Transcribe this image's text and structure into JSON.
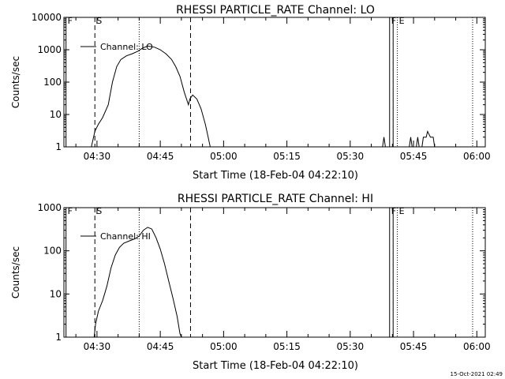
{
  "footer": {
    "timestamp": "15-Oct-2021 02:49"
  },
  "chart_data": [
    {
      "type": "line",
      "title": "RHESSI PARTICLE_RATE Channel: LO",
      "xlabel": "Start Time (18-Feb-04 04:22:10)",
      "ylabel": "Counts/sec",
      "yscale": "log",
      "xlim": [
        "04:22:10",
        "06:02:00"
      ],
      "ylim": [
        1,
        10000
      ],
      "x_ticks": [
        "04:30",
        "04:45",
        "05:00",
        "05:15",
        "05:30",
        "05:45",
        "06:00"
      ],
      "y_ticks": [
        "1",
        "10",
        "100",
        "1000",
        "10000"
      ],
      "legend": {
        "label": "Channel: LO",
        "position": "top-left"
      },
      "markers": [
        {
          "label": "F",
          "time": "04:22:40",
          "style": "solid"
        },
        {
          "label": "S",
          "time": "04:29:30",
          "style": "dashed"
        },
        {
          "label": "",
          "time": "04:40:00",
          "style": "dotted"
        },
        {
          "label": "",
          "time": "04:52:10",
          "style": "dashed"
        },
        {
          "label": "F",
          "time": "05:39:20",
          "style": "solid"
        },
        {
          "label": "",
          "time": "05:40:10",
          "style": "solid"
        },
        {
          "label": "E",
          "time": "05:41:10",
          "style": "dotted"
        },
        {
          "label": "",
          "time": "05:59:00",
          "style": "dotted"
        }
      ],
      "series": [
        {
          "color": "#000000",
          "segments": [
            [
              [
                "04:28:40",
                1
              ],
              [
                "04:29:30",
                3
              ],
              [
                "04:30:20",
                5
              ],
              [
                "04:31:20",
                8
              ],
              [
                "04:32:40",
                20
              ],
              [
                "04:33:40",
                100
              ],
              [
                "04:34:40",
                300
              ],
              [
                "04:35:40",
                500
              ],
              [
                "04:37:00",
                650
              ],
              [
                "04:38:20",
                750
              ],
              [
                "04:39:40",
                900
              ],
              [
                "04:40:40",
                1100
              ],
              [
                "04:42:00",
                1300
              ],
              [
                "04:43:40",
                1200
              ],
              [
                "04:45:00",
                1000
              ],
              [
                "04:46:20",
                750
              ],
              [
                "04:47:40",
                500
              ],
              [
                "04:48:40",
                300
              ],
              [
                "04:49:40",
                150
              ],
              [
                "04:50:40",
                50
              ],
              [
                "04:51:40",
                20
              ],
              [
                "04:52:00",
                30
              ],
              [
                "04:52:40",
                40
              ],
              [
                "04:53:40",
                30
              ],
              [
                "04:54:40",
                15
              ],
              [
                "04:55:40",
                5
              ],
              [
                "04:56:20",
                2
              ],
              [
                "04:56:50",
                1
              ]
            ],
            [
              [
                "05:37:40",
                1
              ],
              [
                "05:38:00",
                2
              ],
              [
                "05:38:20",
                1
              ]
            ],
            [
              [
                "05:44:00",
                1
              ],
              [
                "05:44:20",
                2
              ],
              [
                "05:44:40",
                1
              ]
            ],
            [
              [
                "05:45:40",
                1
              ],
              [
                "05:46:00",
                2
              ],
              [
                "05:46:20",
                1
              ]
            ],
            [
              [
                "05:47:00",
                1
              ],
              [
                "05:47:20",
                2
              ],
              [
                "05:48:00",
                2
              ],
              [
                "05:48:20",
                3
              ],
              [
                "05:49:00",
                2
              ],
              [
                "05:49:40",
                2
              ],
              [
                "05:50:00",
                1
              ]
            ]
          ]
        }
      ]
    },
    {
      "type": "line",
      "title": "RHESSI PARTICLE_RATE Channel: HI",
      "xlabel": "Start Time (18-Feb-04 04:22:10)",
      "ylabel": "Counts/sec",
      "yscale": "log",
      "xlim": [
        "04:22:10",
        "06:02:00"
      ],
      "ylim": [
        1,
        1000
      ],
      "x_ticks": [
        "04:30",
        "04:45",
        "05:00",
        "05:15",
        "05:30",
        "05:45",
        "06:00"
      ],
      "y_ticks": [
        "1",
        "10",
        "100",
        "1000"
      ],
      "legend": {
        "label": "Channel: HI",
        "position": "top-left"
      },
      "markers": [
        {
          "label": "F",
          "time": "04:22:40",
          "style": "solid"
        },
        {
          "label": "S",
          "time": "04:29:30",
          "style": "dashed"
        },
        {
          "label": "",
          "time": "04:40:00",
          "style": "dotted"
        },
        {
          "label": "",
          "time": "04:52:10",
          "style": "dashed"
        },
        {
          "label": "F",
          "time": "05:39:20",
          "style": "solid"
        },
        {
          "label": "",
          "time": "05:40:10",
          "style": "solid"
        },
        {
          "label": "E",
          "time": "05:41:10",
          "style": "dotted"
        },
        {
          "label": "",
          "time": "05:59:00",
          "style": "dotted"
        }
      ],
      "series": [
        {
          "color": "#000000",
          "segments": [
            [
              [
                "04:29:20",
                1
              ],
              [
                "04:29:40",
                2
              ],
              [
                "04:30:20",
                4
              ],
              [
                "04:31:20",
                7
              ],
              [
                "04:32:20",
                15
              ],
              [
                "04:33:20",
                40
              ],
              [
                "04:34:20",
                80
              ],
              [
                "04:35:20",
                120
              ],
              [
                "04:36:20",
                150
              ],
              [
                "04:37:40",
                170
              ],
              [
                "04:39:00",
                190
              ],
              [
                "04:40:00",
                220
              ],
              [
                "04:41:00",
                300
              ],
              [
                "04:42:00",
                350
              ],
              [
                "04:43:00",
                320
              ],
              [
                "04:44:00",
                200
              ],
              [
                "04:45:00",
                110
              ],
              [
                "04:46:00",
                50
              ],
              [
                "04:47:00",
                20
              ],
              [
                "04:48:00",
                8
              ],
              [
                "04:49:00",
                3
              ],
              [
                "04:49:40",
                1.2
              ],
              [
                "04:50:00",
                1
              ]
            ]
          ]
        }
      ]
    }
  ]
}
